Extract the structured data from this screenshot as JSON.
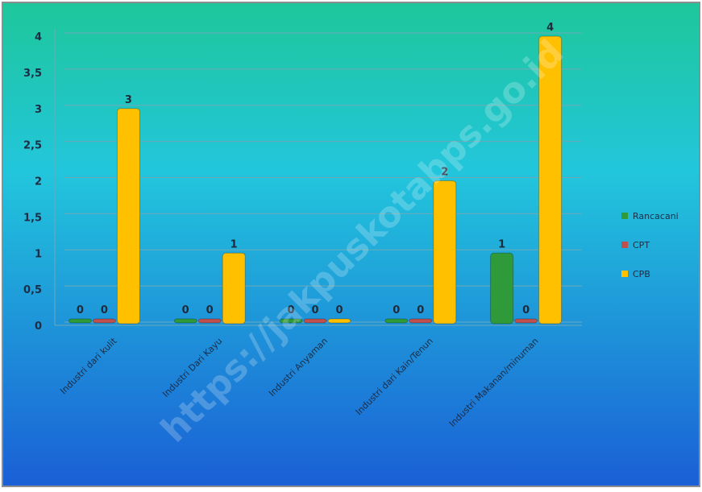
{
  "chart_data": {
    "type": "bar",
    "categories": [
      "Industri dari kulit",
      "Industri Dari Kayu",
      "Industri Anyaman",
      "Industri dari Kain/Tenun",
      "Industri Makanan/minuman"
    ],
    "series": [
      {
        "name": "Rancacani",
        "color": "#2e9a3a",
        "values": [
          0,
          0,
          0,
          0,
          1
        ]
      },
      {
        "name": "CPT",
        "color": "#c0504d",
        "values": [
          0,
          0,
          0,
          0,
          0
        ]
      },
      {
        "name": "CPB",
        "color": "#ffc000",
        "values": [
          3,
          1,
          0,
          2,
          4
        ]
      }
    ],
    "ylim": [
      0,
      4
    ],
    "yticks": [
      "0",
      "0,5",
      "1",
      "1,5",
      "2",
      "2,5",
      "3",
      "3,5",
      "4"
    ],
    "grid": true,
    "legend_position": "right",
    "data_labels": true
  },
  "watermark": "https://jakpuskotabps.go.id",
  "colors": {
    "background_top": "#1ec79a",
    "background_mid": "#22c6dc",
    "background_bottom": "#1a5fd6",
    "gridline": "#6fa9b8",
    "border": "#8e8e8e"
  }
}
